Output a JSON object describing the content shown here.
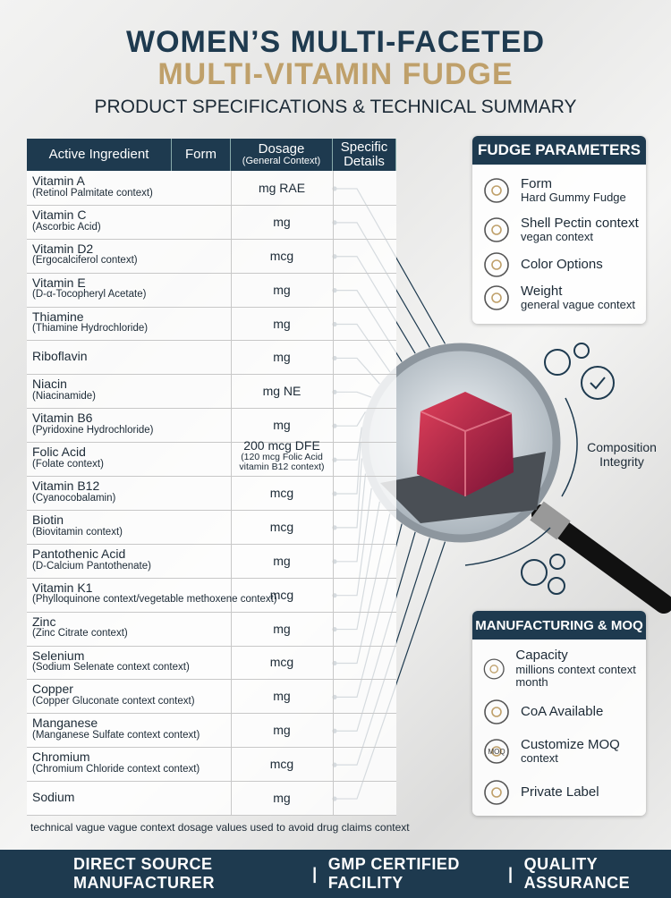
{
  "header": {
    "title_line1": "WOMEN’S MULTI-FACETED",
    "title_line2": "MULTI-VITAMIN FUDGE",
    "subtitle": "PRODUCT SPECIFICATIONS & TECHNICAL SUMMARY"
  },
  "table": {
    "columns": [
      {
        "label": "Active Ingredient"
      },
      {
        "label": "Form"
      },
      {
        "label": "Dosage",
        "sublabel": "(General Context)"
      },
      {
        "label": "Specific Details"
      }
    ],
    "rows": [
      {
        "name": "Vitamin A",
        "note": "(Retinol Palmitate context)",
        "dosage": "mg RAE"
      },
      {
        "name": "Vitamin C",
        "note": "(Ascorbic Acid)",
        "dosage": "mg"
      },
      {
        "name": "Vitamin D2",
        "note": "(Ergocalciferol context)",
        "dosage": "mcg"
      },
      {
        "name": "Vitamin E",
        "note": "(D-α-Tocopheryl Acetate)",
        "dosage": "mg"
      },
      {
        "name": "Thiamine",
        "note": "(Thiamine Hydrochloride)",
        "dosage": "mg"
      },
      {
        "name": "Riboflavin",
        "dosage": "mg"
      },
      {
        "name": "Niacin",
        "note": "(Niacinamide)",
        "dosage": "mg NE"
      },
      {
        "name": "Vitamin B6",
        "note": "(Pyridoxine Hydrochloride)",
        "dosage": "mg"
      },
      {
        "name": "Folic Acid",
        "note": "(Folate context)",
        "dosage": "200 mcg DFE",
        "dosage_note": "(120 mcg Folic Acid vitamin B12 context)"
      },
      {
        "name": "Vitamin B12",
        "note": "(Cyanocobalamin)",
        "dosage": "mcg"
      },
      {
        "name": "Biotin",
        "note": "(Biovitamin context)",
        "dosage": "mcg"
      },
      {
        "name": "Pantothenic Acid",
        "note": "(D-Calcium Pantothenate)",
        "dosage": "mg"
      },
      {
        "name": "Vitamin K1",
        "note": "(Phylloquinone context/vegetable methoxene context)",
        "dosage": "mcg"
      },
      {
        "name": "Zinc",
        "note": "(Zinc Citrate context)",
        "dosage": "mg"
      },
      {
        "name": "Selenium",
        "note": "(Sodium Selenate context context)",
        "dosage": "mcg"
      },
      {
        "name": "Copper",
        "note": "(Copper Gluconate context context)",
        "dosage": "mg"
      },
      {
        "name": "Manganese",
        "note": "(Manganese Sulfate context context)",
        "dosage": "mg"
      },
      {
        "name": "Chromium",
        "note": "(Chromium Chloride context context)",
        "dosage": "mcg"
      },
      {
        "name": "Sodium",
        "dosage": "mg"
      }
    ],
    "footnote": "technical vague vague context dosage values used to avoid drug claims context"
  },
  "fudge_parameters": {
    "title": "FUDGE PARAMETERS",
    "items": [
      {
        "label": "Form",
        "value": "Hard Gummy Fudge"
      },
      {
        "label": "Shell Pectin context",
        "value": "vegan context"
      },
      {
        "label": "Color Options"
      },
      {
        "label": "Weight",
        "value": "general vague context"
      }
    ]
  },
  "composition_label": "Composition Integrity",
  "manufacturing": {
    "title": "MANUFACTURING & MOQ",
    "items": [
      {
        "label": "Capacity",
        "value": "millions context context month"
      },
      {
        "label": "CoA Available"
      },
      {
        "label": "Customize MOQ",
        "value": "context",
        "icon_label": "MOQ"
      },
      {
        "label": "Private Label"
      }
    ]
  },
  "footer": {
    "items": [
      "DIRECT SOURCE MANUFACTURER",
      "GMP CERTIFIED FACILITY",
      "QUALITY ASSURANCE"
    ]
  }
}
